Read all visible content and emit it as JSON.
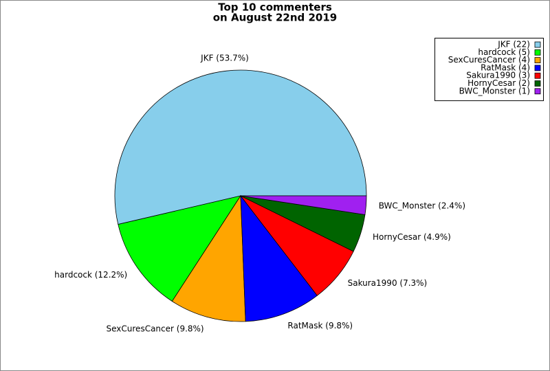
{
  "chart_data": {
    "type": "pie",
    "title": [
      "Top 10 commenters",
      "on August 22nd 2019"
    ],
    "values": [
      53.7,
      12.2,
      9.8,
      9.8,
      7.3,
      4.9,
      2.4
    ],
    "value_labels": [
      "JKF (53.7%)",
      "hardcock (12.2%)",
      "SexCuresCancer (9.8%)",
      "RatMask (9.8%)",
      "Sakura1990 (7.3%)",
      "HornyCesar (4.9%)",
      "BWC_Monster (2.4%)"
    ],
    "legend": [
      "JKF (22)",
      "hardcock (5)",
      "SexCuresCancer (4)",
      "RatMask (4)",
      "Sakura1990 (3)",
      "HornyCesar (2)",
      "BWC_Monster (1)"
    ],
    "colors": [
      "#87ceeb",
      "#00ff00",
      "#ffa500",
      "#0000ff",
      "#ff0000",
      "#006400",
      "#a020f0"
    ],
    "legend_position": "upper right"
  }
}
